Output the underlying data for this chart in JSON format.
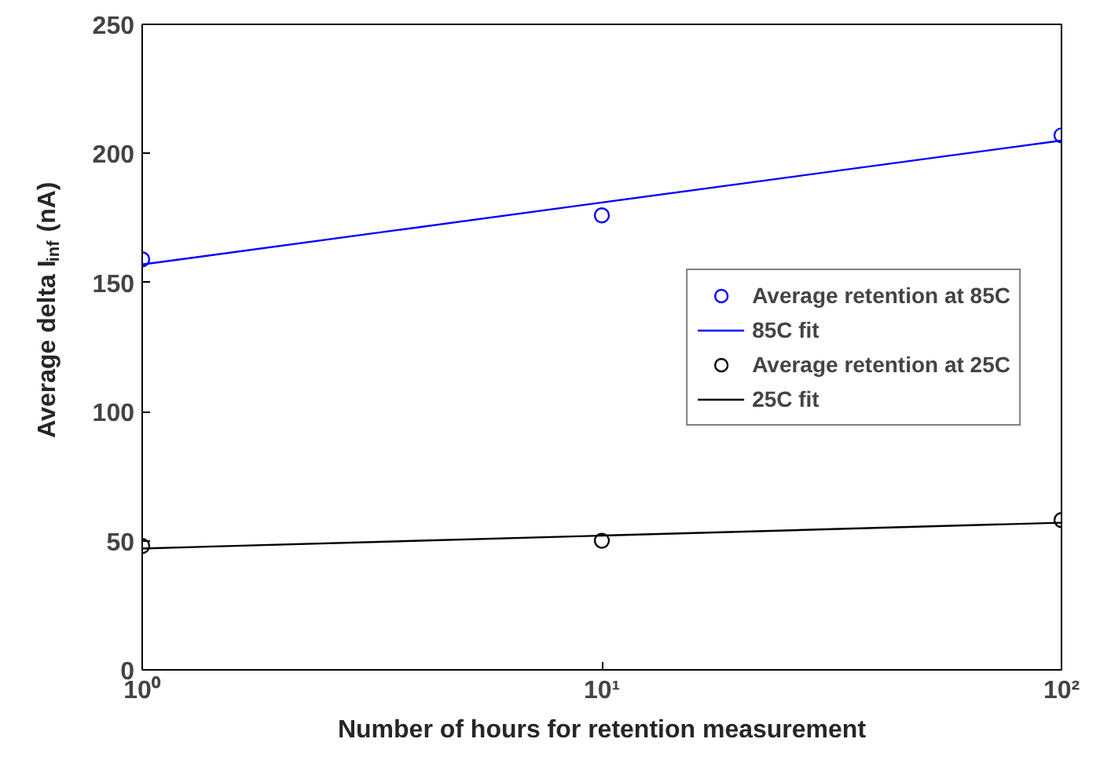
{
  "chart_data": {
    "type": "scatter",
    "xlabel": "Number of hours for retention measurement",
    "ylabel": "Average delta I$_{inf}$ (nA)",
    "x": [
      1,
      10,
      100
    ],
    "log": "x",
    "xlim": [
      1,
      100
    ],
    "xticks": [
      {
        "value": 1,
        "label": "10⁰"
      },
      {
        "value": 10,
        "label": "10¹"
      },
      {
        "value": 100,
        "label": "10²"
      }
    ],
    "ylim": [
      0,
      250
    ],
    "yticks": [
      0,
      50,
      100,
      150,
      200,
      250
    ],
    "grid": false,
    "legend": "right",
    "marker": "circle",
    "series": [
      {
        "name": "Average retention at 85C",
        "color": "#0000ff",
        "values": [
          159,
          176,
          207
        ]
      },
      {
        "name": "85C fit",
        "type": "line",
        "color": "#0000ff",
        "x": [
          1,
          10,
          100
        ],
        "values": [
          157,
          181,
          205
        ],
        "marker": "none"
      },
      {
        "name": "Average retention at 25C",
        "color": "#000000",
        "values": [
          48,
          50,
          58
        ]
      },
      {
        "name": "25C fit",
        "type": "line",
        "color": "#000000",
        "x": [
          1,
          10,
          100
        ],
        "values": [
          47,
          52,
          57
        ],
        "marker": "none"
      }
    ]
  }
}
